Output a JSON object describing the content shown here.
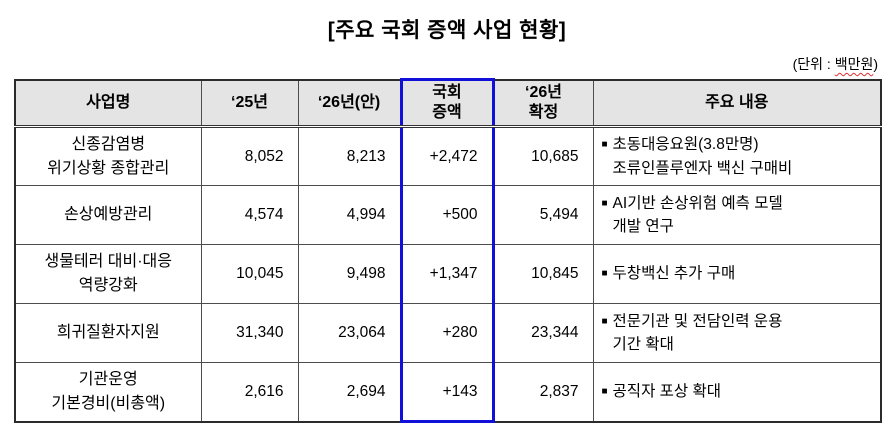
{
  "title": "[주요 국회 증액 사업 현황]",
  "unit_note": {
    "prefix": "(단위 : ",
    "unit": "백만원",
    "suffix": ")"
  },
  "colors": {
    "highlight_border": "#1010d8",
    "header_bg": "#e4e4e4",
    "border_line": "#4d4d4d"
  },
  "table": {
    "bullet": "■",
    "headers": [
      "사업명",
      "‘25년",
      "‘26년(안)",
      "국회\n증액",
      "‘26년\n확정",
      "주요 내용"
    ],
    "highlight_column_index": 3,
    "rows": [
      {
        "name": "신종감염병\n위기상황 종합관리",
        "y25": "8,052",
        "y26_plan": "8,213",
        "increase": "+2,472",
        "y26_final": "10,685",
        "details": [
          "초동대응요원(3.8만명)\n조류인플루엔자 백신 구매비"
        ]
      },
      {
        "name": "손상예방관리",
        "y25": "4,574",
        "y26_plan": "4,994",
        "increase": "+500",
        "y26_final": "5,494",
        "details": [
          "AI기반 손상위험 예측 모델\n개발 연구"
        ]
      },
      {
        "name": "생물테러 대비·대응\n역량강화",
        "y25": "10,045",
        "y26_plan": "9,498",
        "increase": "+1,347",
        "y26_final": "10,845",
        "details": [
          "두창백신 추가 구매"
        ]
      },
      {
        "name": "희귀질환자지원",
        "y25": "31,340",
        "y26_plan": "23,064",
        "increase": "+280",
        "y26_final": "23,344",
        "details": [
          "전문기관 및 전담인력 운용\n기간 확대"
        ]
      },
      {
        "name": "기관운영\n기본경비(비총액)",
        "y25": "2,616",
        "y26_plan": "2,694",
        "increase": "+143",
        "y26_final": "2,837",
        "details": [
          "공직자 포상 확대"
        ]
      }
    ]
  }
}
